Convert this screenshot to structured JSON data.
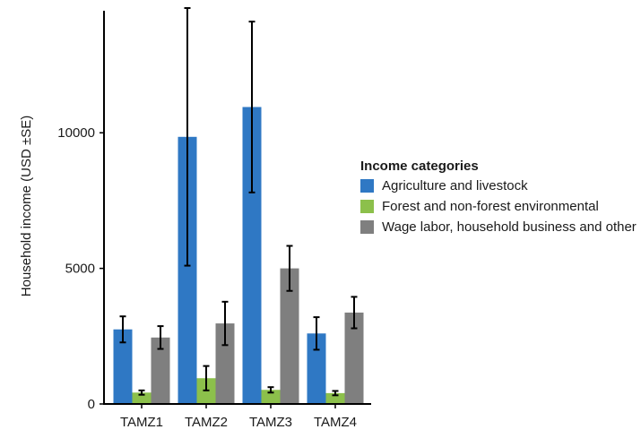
{
  "chart_data": {
    "type": "bar",
    "title": "",
    "xlabel": "",
    "ylabel": "Household income (USD ±SE)",
    "ylim": [
      0,
      14500
    ],
    "yticks": [
      0,
      5000,
      10000
    ],
    "grid": false,
    "legend_placement": "right",
    "legend_title": "Income categories",
    "categories": [
      "TAMZ1",
      "TAMZ2",
      "TAMZ3",
      "TAMZ4"
    ],
    "series": [
      {
        "name": "Agriculture and livestock",
        "color": "#2f78c4",
        "values": [
          2750,
          9850,
          10950,
          2600
        ],
        "errors": [
          480,
          4750,
          3150,
          600
        ]
      },
      {
        "name": "Forest and non-forest environmental",
        "color": "#8cc04b",
        "values": [
          420,
          950,
          520,
          400
        ],
        "errors": [
          80,
          450,
          100,
          80
        ]
      },
      {
        "name": "Wage labor, household business and other",
        "color": "#7f7f7f",
        "values": [
          2450,
          2970,
          5000,
          3370
        ],
        "errors": [
          420,
          800,
          830,
          580
        ]
      }
    ]
  }
}
